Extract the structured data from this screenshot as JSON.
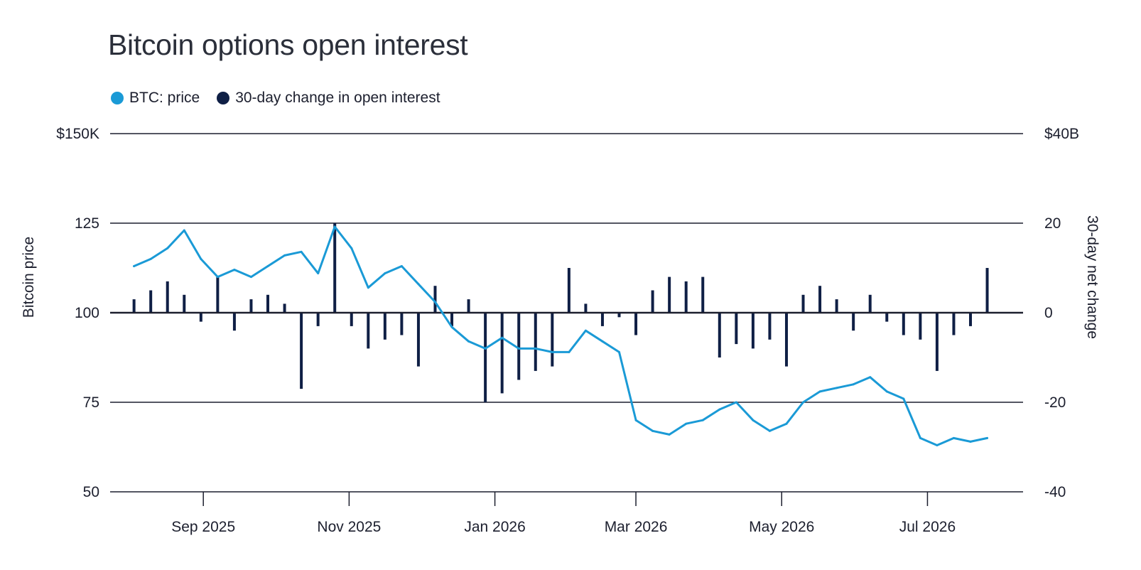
{
  "chart_data": {
    "type": "line",
    "title": "Bitcoin options open interest",
    "legend_placement": "top-left",
    "grid": true,
    "colors": {
      "price": "#1a9ad6",
      "oi": "#0f1f45"
    },
    "series": [
      {
        "name": "BTC: price",
        "axis": "left",
        "type": "line",
        "x": [
          "2025-08-03",
          "2025-08-10",
          "2025-08-17",
          "2025-08-24",
          "2025-08-31",
          "2025-09-07",
          "2025-09-14",
          "2025-09-21",
          "2025-09-28",
          "2025-10-05",
          "2025-10-12",
          "2025-10-19",
          "2025-10-26",
          "2025-11-02",
          "2025-11-09",
          "2025-11-16",
          "2025-11-23",
          "2025-11-30",
          "2025-12-07",
          "2025-12-14",
          "2025-12-21",
          "2025-12-28",
          "2026-01-04",
          "2026-01-11",
          "2026-01-18",
          "2026-01-25",
          "2026-02-01",
          "2026-02-08",
          "2026-02-15",
          "2026-02-22",
          "2026-03-01",
          "2026-03-08",
          "2026-03-15",
          "2026-03-22",
          "2026-03-29",
          "2026-04-05",
          "2026-04-12",
          "2026-04-19",
          "2026-04-26",
          "2026-05-03",
          "2026-05-10",
          "2026-05-17",
          "2026-05-24",
          "2026-05-31",
          "2026-06-07",
          "2026-06-14",
          "2026-06-21",
          "2026-06-28",
          "2026-07-05",
          "2026-07-12",
          "2026-07-19",
          "2026-07-26"
        ],
        "values": [
          113,
          115,
          118,
          123,
          115,
          110,
          112,
          110,
          113,
          116,
          117,
          111,
          124,
          118,
          107,
          111,
          113,
          108,
          103,
          96,
          92,
          90,
          93,
          90,
          90,
          89,
          89,
          95,
          92,
          89,
          70,
          67,
          66,
          69,
          70,
          73,
          75,
          70,
          67,
          69,
          75,
          78,
          79,
          80,
          82,
          78,
          76,
          65,
          63,
          65,
          64,
          65
        ]
      },
      {
        "name": "30-day change in open interest",
        "axis": "right",
        "type": "bar",
        "x": [
          "2025-08-03",
          "2025-08-10",
          "2025-08-17",
          "2025-08-24",
          "2025-08-31",
          "2025-09-07",
          "2025-09-14",
          "2025-09-21",
          "2025-09-28",
          "2025-10-05",
          "2025-10-12",
          "2025-10-19",
          "2025-10-26",
          "2025-11-02",
          "2025-11-09",
          "2025-11-16",
          "2025-11-23",
          "2025-11-30",
          "2025-12-07",
          "2025-12-14",
          "2025-12-21",
          "2025-12-28",
          "2026-01-04",
          "2026-01-11",
          "2026-01-18",
          "2026-01-25",
          "2026-02-01",
          "2026-02-08",
          "2026-02-15",
          "2026-02-22",
          "2026-03-01",
          "2026-03-08",
          "2026-03-15",
          "2026-03-22",
          "2026-03-29",
          "2026-04-05",
          "2026-04-12",
          "2026-04-19",
          "2026-04-26",
          "2026-05-03",
          "2026-05-10",
          "2026-05-17",
          "2026-05-24",
          "2026-05-31",
          "2026-06-07",
          "2026-06-14",
          "2026-06-21",
          "2026-06-28",
          "2026-07-05",
          "2026-07-12",
          "2026-07-19",
          "2026-07-26"
        ],
        "values": [
          3,
          5,
          7,
          4,
          -2,
          8,
          -4,
          3,
          4,
          2,
          -17,
          -3,
          20,
          -3,
          -8,
          -6,
          -5,
          -12,
          6,
          -3,
          3,
          -20,
          -18,
          -15,
          -13,
          -12,
          10,
          2,
          -3,
          -1,
          -5,
          5,
          8,
          7,
          8,
          -10,
          -7,
          -8,
          -6,
          -12,
          4,
          6,
          3,
          -4,
          4,
          -2,
          -5,
          -6,
          -13,
          -5,
          -3,
          10
        ]
      }
    ],
    "x_ticks": [
      "Sep 2025",
      "Nov 2025",
      "Jan 2026",
      "Mar 2026",
      "May 2026",
      "Jul 2026"
    ],
    "x_tick_dates": [
      "2025-09-01",
      "2025-11-01",
      "2026-01-01",
      "2026-03-01",
      "2026-05-01",
      "2026-07-01"
    ],
    "xlim": [
      "2025-07-24",
      "2026-08-10"
    ],
    "ylabel": "Bitcoin price",
    "ylim": [
      50,
      150
    ],
    "y_ticks": [
      "$150K",
      "125",
      "100",
      "75",
      "50"
    ],
    "y_tick_values": [
      150,
      125,
      100,
      75,
      50
    ],
    "y2label": "30-day net change",
    "y2lim": [
      -40,
      40
    ],
    "y2_ticks": [
      "$40B",
      "20",
      "0",
      "-20",
      "-40"
    ],
    "y2_tick_values": [
      40,
      20,
      0,
      -20,
      -40
    ]
  }
}
